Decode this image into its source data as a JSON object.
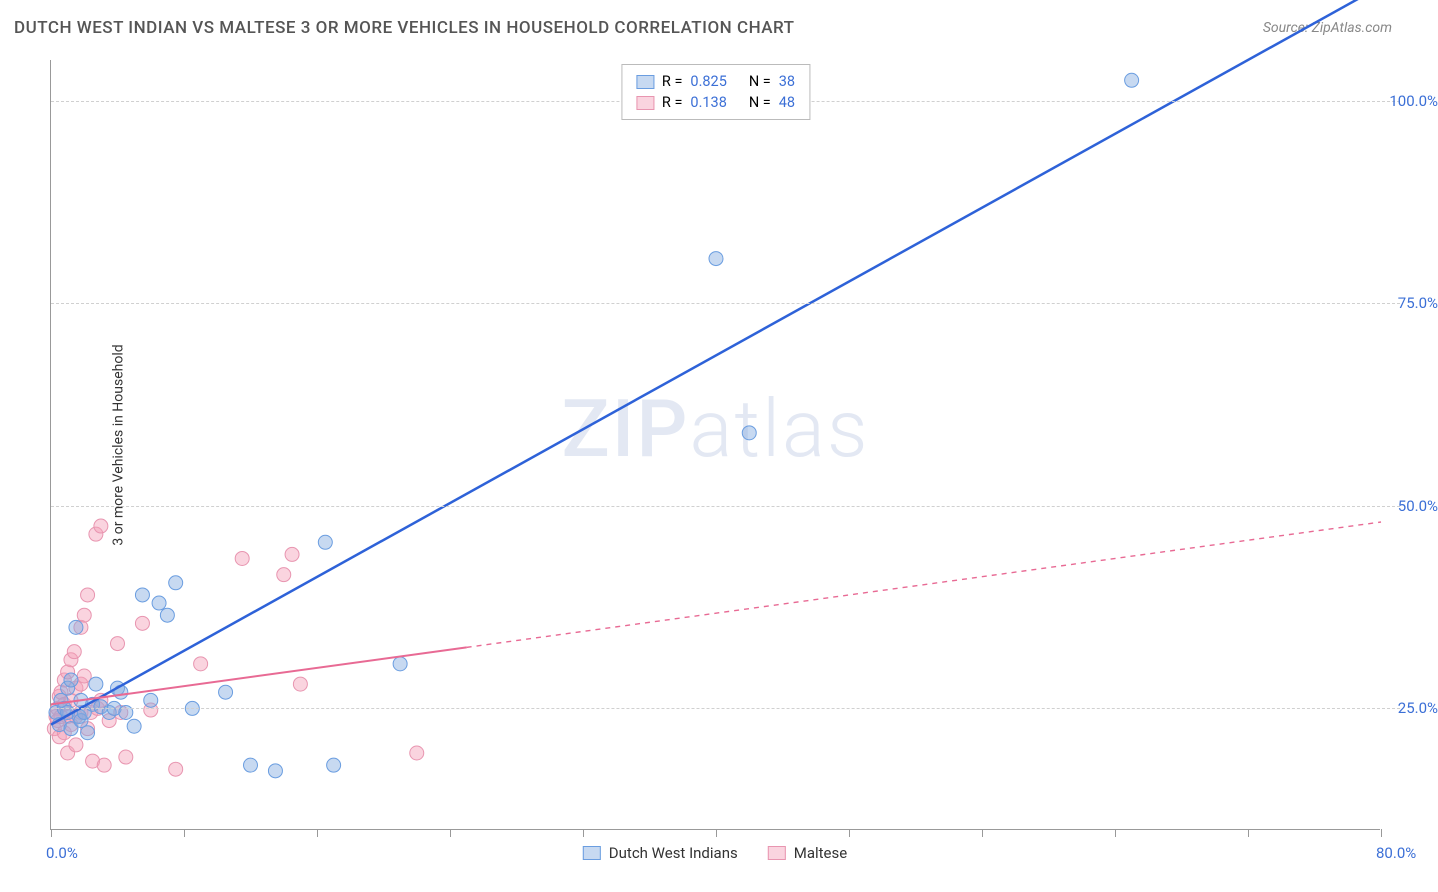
{
  "header": {
    "title": "DUTCH WEST INDIAN VS MALTESE 3 OR MORE VEHICLES IN HOUSEHOLD CORRELATION CHART",
    "source": "Source: ZipAtlas.com"
  },
  "chart": {
    "type": "scatter",
    "watermark": "ZIPatlas",
    "xlim": [
      0,
      80
    ],
    "ylim": [
      10,
      105
    ],
    "x_ticks": [
      0,
      8,
      16,
      24,
      32,
      40,
      48,
      56,
      64,
      72,
      80
    ],
    "y_gridlines": [
      25,
      50,
      75,
      100
    ],
    "x_axis_labels": [
      {
        "v": 0,
        "t": "0.0%"
      },
      {
        "v": 80,
        "t": "80.0%"
      }
    ],
    "y_axis_labels": [
      {
        "v": 25,
        "t": "25.0%"
      },
      {
        "v": 50,
        "t": "50.0%"
      },
      {
        "v": 75,
        "t": "75.0%"
      },
      {
        "v": 100,
        "t": "100.0%"
      }
    ],
    "ylabel": "3 or more Vehicles in Household",
    "background_color": "#ffffff",
    "grid_color": "#d0d0d0",
    "axis_value_color": "#3b6fd6",
    "point_radius": 7,
    "series": [
      {
        "id": "dwi",
        "label": "Dutch West Indians",
        "fill": "rgba(130,170,225,0.45)",
        "stroke": "#6a9de0",
        "line_color": "#2e62d8",
        "line_width": 2.5,
        "line_dash": "none",
        "R": "0.825",
        "N": "38",
        "regression": {
          "x1": 0,
          "y1": 23,
          "x2": 72,
          "y2": 105
        },
        "solid_until_x": 80,
        "points": [
          [
            0.3,
            24.5
          ],
          [
            0.5,
            23
          ],
          [
            0.6,
            26
          ],
          [
            0.8,
            25
          ],
          [
            1,
            27.5
          ],
          [
            1,
            24.5
          ],
          [
            1.2,
            22.5
          ],
          [
            1.2,
            28.5
          ],
          [
            1.5,
            35
          ],
          [
            1.7,
            24
          ],
          [
            1.8,
            26
          ],
          [
            1.8,
            23.5
          ],
          [
            2,
            24.5
          ],
          [
            2.2,
            22
          ],
          [
            2.5,
            25.5
          ],
          [
            2.7,
            28
          ],
          [
            3,
            25.2
          ],
          [
            3.5,
            24.5
          ],
          [
            3.8,
            25
          ],
          [
            4,
            27.5
          ],
          [
            4.2,
            27
          ],
          [
            4.5,
            24.5
          ],
          [
            5,
            22.8
          ],
          [
            5.5,
            39
          ],
          [
            6,
            26
          ],
          [
            6.5,
            38
          ],
          [
            7,
            36.5
          ],
          [
            7.5,
            40.5
          ],
          [
            8.5,
            25
          ],
          [
            10.5,
            27
          ],
          [
            12,
            18
          ],
          [
            13.5,
            17.3
          ],
          [
            16.5,
            45.5
          ],
          [
            17,
            18
          ],
          [
            21,
            30.5
          ],
          [
            40,
            80.5
          ],
          [
            42,
            59
          ],
          [
            65,
            102.5
          ]
        ]
      },
      {
        "id": "maltese",
        "label": "Maltese",
        "fill": "rgba(245,160,185,0.45)",
        "stroke": "#e895b0",
        "line_color": "#e86a94",
        "line_width": 2,
        "line_dash": "5,5",
        "R": "0.138",
        "N": "48",
        "regression": {
          "x1": 0,
          "y1": 25.5,
          "x2": 80,
          "y2": 48
        },
        "solid_until_x": 25,
        "points": [
          [
            0.2,
            22.5
          ],
          [
            0.3,
            24
          ],
          [
            0.4,
            25
          ],
          [
            0.4,
            23.5
          ],
          [
            0.5,
            26.5
          ],
          [
            0.5,
            21.5
          ],
          [
            0.6,
            27
          ],
          [
            0.6,
            24
          ],
          [
            0.8,
            28.5
          ],
          [
            0.8,
            25.5
          ],
          [
            0.8,
            22
          ],
          [
            1,
            29.5
          ],
          [
            1,
            24
          ],
          [
            1,
            19.5
          ],
          [
            1.2,
            31
          ],
          [
            1.2,
            26
          ],
          [
            1.2,
            23
          ],
          [
            1.4,
            32
          ],
          [
            1.5,
            27.5
          ],
          [
            1.5,
            24
          ],
          [
            1.5,
            20.5
          ],
          [
            1.8,
            35
          ],
          [
            1.8,
            28
          ],
          [
            1.8,
            24.5
          ],
          [
            2,
            36.5
          ],
          [
            2,
            29
          ],
          [
            2.2,
            39
          ],
          [
            2.2,
            22.5
          ],
          [
            2.4,
            24.5
          ],
          [
            2.5,
            18.5
          ],
          [
            2.7,
            46.5
          ],
          [
            2.8,
            25
          ],
          [
            3,
            47.5
          ],
          [
            3,
            26
          ],
          [
            3.2,
            18
          ],
          [
            3.5,
            23.5
          ],
          [
            4,
            33
          ],
          [
            4.2,
            24.5
          ],
          [
            4.5,
            19
          ],
          [
            5.5,
            35.5
          ],
          [
            6,
            24.8
          ],
          [
            7.5,
            17.5
          ],
          [
            9,
            30.5
          ],
          [
            11.5,
            43.5
          ],
          [
            14,
            41.5
          ],
          [
            14.5,
            44
          ],
          [
            15,
            28
          ],
          [
            22,
            19.5
          ]
        ]
      }
    ]
  }
}
